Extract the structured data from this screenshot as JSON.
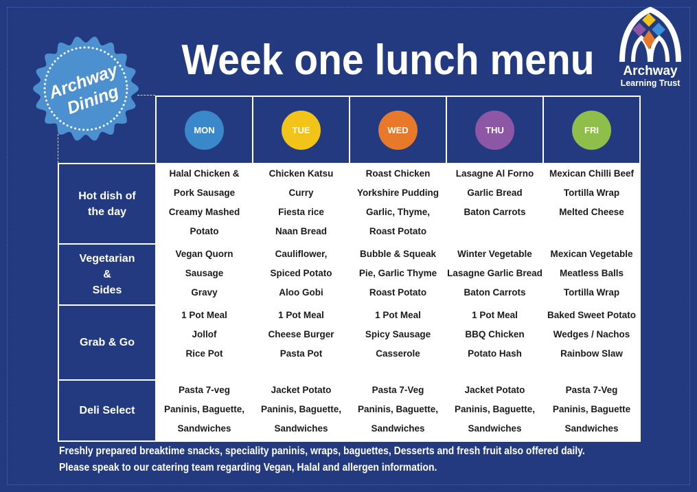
{
  "title": "Week one lunch menu",
  "badge": {
    "line1": "Archway",
    "line2": "Dining",
    "color": "#4c90d0"
  },
  "logo": {
    "line1": "Archway",
    "line2": "Learning Trust",
    "colors": [
      "#f2c318",
      "#8e57a6",
      "#3a8fd6",
      "#e8792a"
    ]
  },
  "days": [
    {
      "label": "MON",
      "color": "#3a87c9"
    },
    {
      "label": "TUE",
      "color": "#f2c318"
    },
    {
      "label": "WED",
      "color": "#e8792a"
    },
    {
      "label": "THU",
      "color": "#8e57a6"
    },
    {
      "label": "FRI",
      "color": "#8fbf4a"
    }
  ],
  "rows": [
    {
      "label": [
        "Hot dish of",
        "the day"
      ],
      "cells": [
        [
          "Halal Chicken &",
          "Pork Sausage",
          "Creamy Mashed",
          "Potato"
        ],
        [
          "Chicken Katsu",
          "Curry",
          "Fiesta rice",
          "Naan Bread"
        ],
        [
          "Roast Chicken",
          "Yorkshire Pudding",
          "Garlic, Thyme,",
          "Roast Potato"
        ],
        [
          "Lasagne Al Forno",
          "Garlic Bread",
          "Baton  Carrots"
        ],
        [
          "Mexican Chilli Beef",
          "Tortilla Wrap",
          "Melted Cheese"
        ]
      ]
    },
    {
      "label": [
        "Vegetarian",
        "&",
        "Sides"
      ],
      "cells": [
        [
          "Vegan Quorn",
          "Sausage",
          "Gravy"
        ],
        [
          "Cauliflower,",
          "Spiced Potato",
          "Aloo Gobi"
        ],
        [
          "Bubble & Squeak",
          "Pie, Garlic Thyme",
          "Roast Potato"
        ],
        [
          "Winter Vegetable",
          "Lasagne Garlic Bread",
          "Baton Carrots"
        ],
        [
          "Mexican Vegetable",
          "Meatless Balls",
          "Tortilla Wrap"
        ]
      ]
    },
    {
      "label": [
        "Grab & Go"
      ],
      "cells": [
        [
          "1 Pot Meal",
          "Jollof",
          "Rice Pot"
        ],
        [
          "1 Pot Meal",
          "Cheese Burger",
          "Pasta Pot"
        ],
        [
          "1 Pot Meal",
          "Spicy Sausage",
          "Casserole"
        ],
        [
          "1 Pot Meal",
          "BBQ Chicken",
          "Potato Hash"
        ],
        [
          "Baked Sweet Potato",
          "Wedges / Nachos",
          "Rainbow Slaw"
        ]
      ]
    },
    {
      "label": [
        "Deli Select"
      ],
      "cells": [
        [
          "Pasta 7-veg",
          "Paninis, Baguette,",
          "Sandwiches"
        ],
        [
          "Jacket Potato",
          "Paninis, Baguette,",
          "Sandwiches"
        ],
        [
          "Pasta 7-Veg",
          "Paninis, Baguette,",
          "Sandwiches"
        ],
        [
          "Jacket Potato",
          "Paninis, Baguette,",
          "Sandwiches"
        ],
        [
          "Pasta 7-Veg",
          "Paninis, Baguette",
          "Sandwiches"
        ]
      ]
    }
  ],
  "footer": [
    "Freshly prepared breaktime snacks, speciality paninis, wraps, baguettes, Desserts and fresh fruit also offered daily.",
    "Please speak to our catering team regarding Vegan, Halal and allergen information."
  ]
}
